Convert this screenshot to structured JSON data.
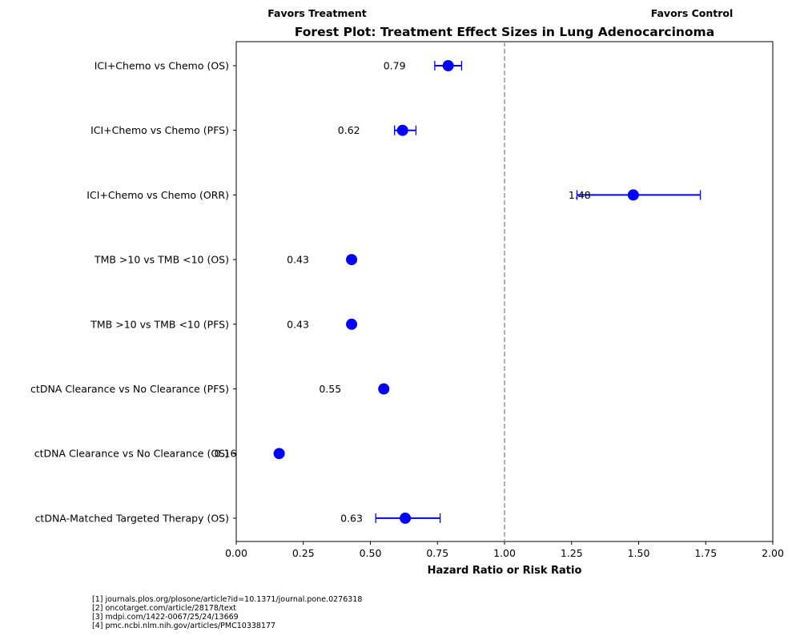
{
  "chart_data": {
    "type": "forest",
    "title": "Forest Plot: Treatment Effect Sizes in Lung Adenocarcinoma",
    "xlabel": "Hazard Ratio or Risk Ratio",
    "xlim": [
      0,
      2.0
    ],
    "xticks": [
      "0.00",
      "0.25",
      "0.50",
      "0.75",
      "1.00",
      "1.25",
      "1.50",
      "1.75",
      "2.00"
    ],
    "reference_line": 1.0,
    "favors_left": "Favors Treatment",
    "favors_right": "Favors Control",
    "marker_color": "#0000ff",
    "reference_color": "#999999",
    "rows": [
      {
        "label": "ICI+Chemo vs Chemo (OS)",
        "value": 0.79,
        "display": "0.79",
        "ci": [
          0.74,
          0.84
        ]
      },
      {
        "label": "ICI+Chemo vs Chemo (PFS)",
        "value": 0.62,
        "display": "0.62",
        "ci": [
          0.59,
          0.67
        ]
      },
      {
        "label": "ICI+Chemo vs Chemo (ORR)",
        "value": 1.48,
        "display": "1.48",
        "ci": [
          1.27,
          1.73
        ]
      },
      {
        "label": "TMB >10 vs TMB <10 (OS)",
        "value": 0.43,
        "display": "0.43",
        "ci": null
      },
      {
        "label": "TMB >10 vs TMB <10 (PFS)",
        "value": 0.43,
        "display": "0.43",
        "ci": null
      },
      {
        "label": "ctDNA Clearance vs No Clearance (PFS)",
        "value": 0.55,
        "display": "0.55",
        "ci": null
      },
      {
        "label": "ctDNA Clearance vs No Clearance (OS)",
        "value": 0.16,
        "display": "0.16",
        "ci": null
      },
      {
        "label": "ctDNA-Matched Targeted Therapy (OS)",
        "value": 0.63,
        "display": "0.63",
        "ci": [
          0.52,
          0.76
        ]
      }
    ]
  },
  "references": [
    "[1] journals.plos.org/plosone/article?id=10.1371/journal.pone.0276318",
    "[2] oncotarget.com/article/28178/text",
    "[3] mdpi.com/1422-0067/25/24/13669",
    "[4] pmc.ncbi.nlm.nih.gov/articles/PMC10338177"
  ]
}
